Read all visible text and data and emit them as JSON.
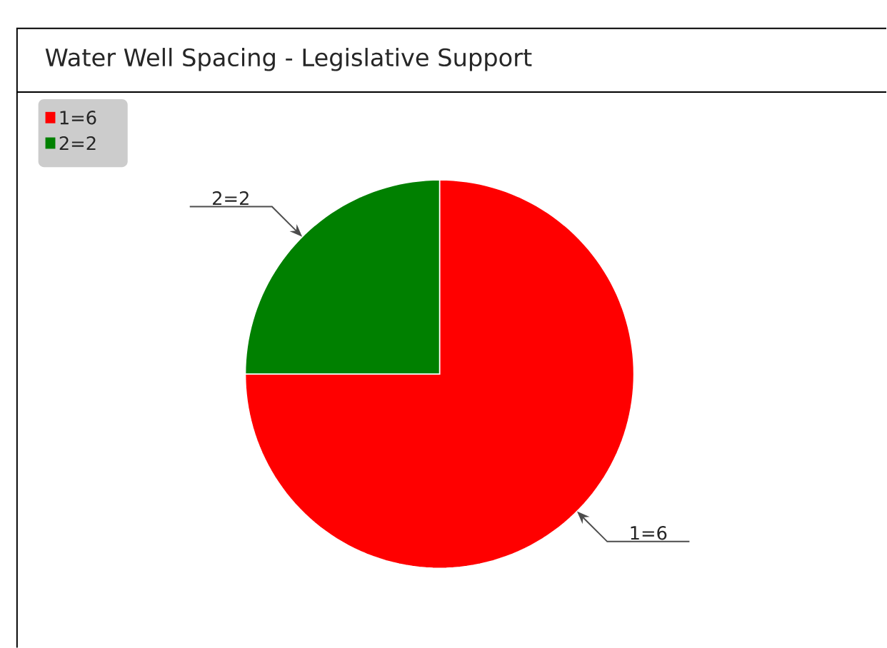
{
  "chart_data": {
    "type": "pie",
    "title": "Water Well Spacing - Legislative Support",
    "categories": [
      "1=6",
      "2=2"
    ],
    "values": [
      6,
      2
    ],
    "colors": [
      "#ff0000",
      "#008000"
    ],
    "legend": "top left"
  }
}
